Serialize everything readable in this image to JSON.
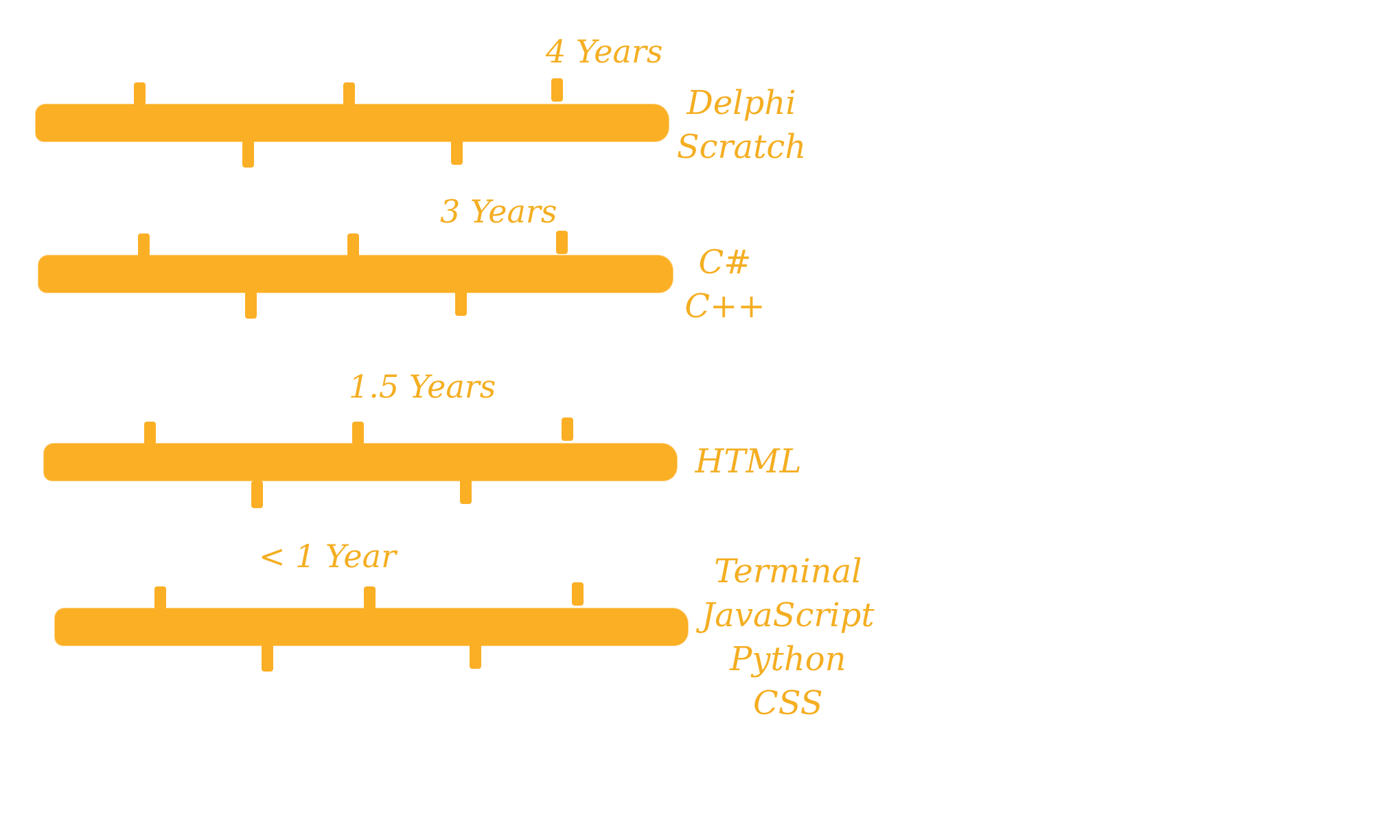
{
  "rows": [
    {
      "duration": "4 Years",
      "languages": [
        "Delphi",
        "Scratch"
      ]
    },
    {
      "duration": "3 Years",
      "languages": [
        "C#",
        "C++"
      ]
    },
    {
      "duration": "1.5 Years",
      "languages": [
        "HTML"
      ]
    },
    {
      "duration": "< 1 Year",
      "languages": [
        "Terminal",
        "JavaScript",
        "Python",
        "CSS"
      ]
    }
  ],
  "colors": {
    "bar": "#fbaf24",
    "text": "#f4ae22",
    "background": "#ffffff"
  }
}
